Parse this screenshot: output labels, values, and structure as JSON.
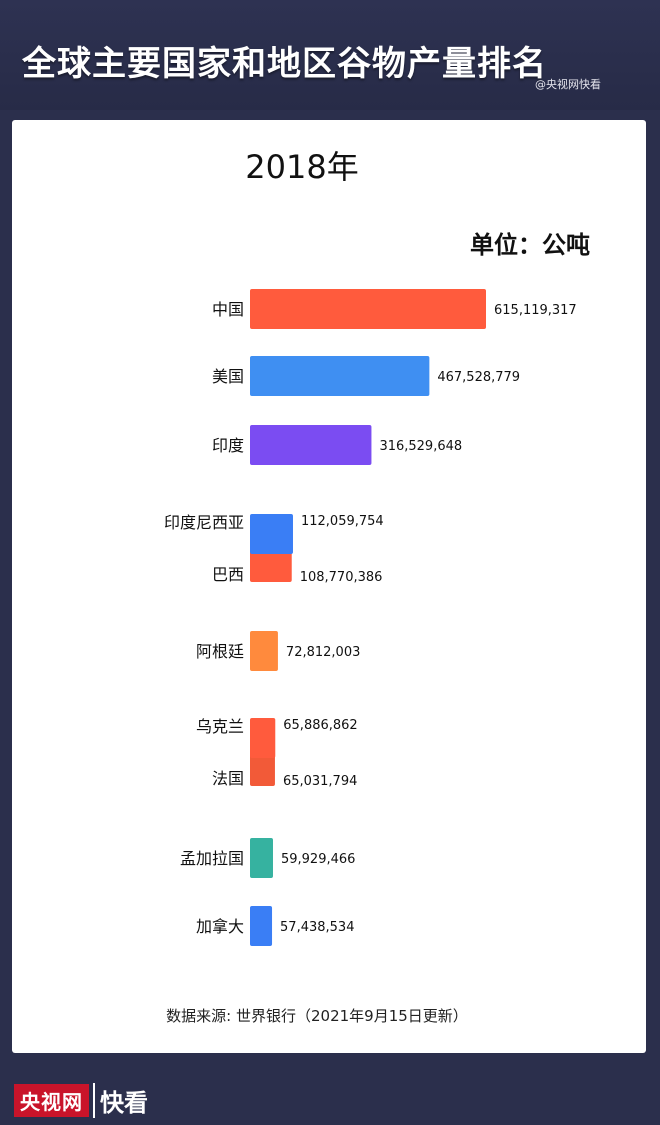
{
  "banner": {
    "title": "全球主要国家和地区谷物产量排名",
    "watermark": "@央视网快看"
  },
  "chart_data": {
    "type": "bar",
    "orientation": "horizontal",
    "title": "2018年",
    "unit": "单位：公吨",
    "categories": [
      "中国",
      "美国",
      "印度",
      "印度尼西亚",
      "巴西",
      "阿根廷",
      "乌克兰",
      "法国",
      "孟加拉国",
      "加拿大"
    ],
    "values": [
      615119317,
      467528779,
      316529648,
      112059754,
      108770386,
      72812003,
      65886862,
      65031794,
      59929466,
      57438534
    ],
    "value_labels": [
      "615,119,317",
      "467,528,779",
      "316,529,648",
      "112,059,754",
      "108,770,386",
      "72,812,003",
      "65,886,862",
      "65,031,794",
      "59,929,466",
      "57,438,534"
    ],
    "colors": [
      "#ff5b3d",
      "#3f8ff2",
      "#7b4cf2",
      "#3a7ef5",
      "#ff5b3d",
      "#ff8a3d",
      "#ff5b3d",
      "#f25a38",
      "#36b2a0",
      "#3a7ef5"
    ]
  },
  "footer": {
    "source": "数据来源: 世界银行（2021年9月15日更新）"
  },
  "logo": {
    "part1": "央视网",
    "part2": "快看"
  }
}
